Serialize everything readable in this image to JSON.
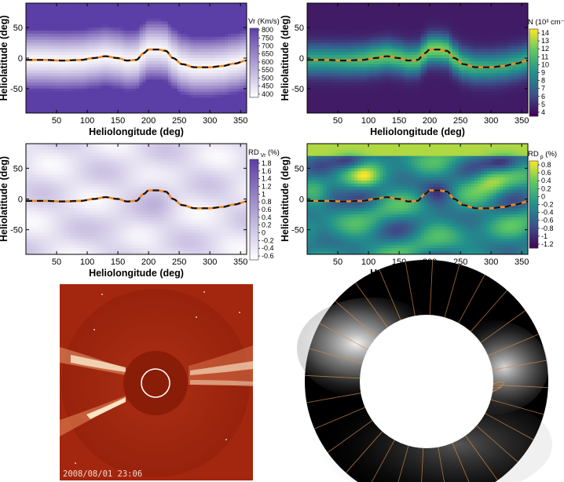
{
  "chart_data": [
    {
      "type": "heatmap",
      "quantity_label": "Vr (Km/s)",
      "xlabel": "Heliolongitude (deg)",
      "ylabel": "Heliolatitude (deg)",
      "xlim": [
        0,
        360
      ],
      "ylim": [
        -90,
        90
      ],
      "xticks": [
        "50",
        "100",
        "150",
        "200",
        "250",
        "300",
        "350"
      ],
      "yticks": [
        "50",
        "0",
        "-50"
      ],
      "colorbar_ticks": [
        "800",
        "750",
        "700",
        "650",
        "600",
        "550",
        "500",
        "450",
        "400"
      ],
      "colorbar_range": [
        380,
        810
      ],
      "colormap": [
        "#ffffff",
        "#5b3ea6"
      ],
      "current_sheet_style": "black/orange dashed"
    },
    {
      "type": "heatmap",
      "quantity_label": "N (10³ cm⁻³)",
      "xlabel": "Heliolongitude (deg)",
      "ylabel": "Heliolatitude (deg)",
      "xlim": [
        0,
        360
      ],
      "ylim": [
        -90,
        90
      ],
      "xticks": [
        "50",
        "100",
        "150",
        "200",
        "250",
        "300",
        "350"
      ],
      "yticks": [
        "50",
        "0",
        "-50"
      ],
      "colorbar_ticks": [
        "14",
        "13",
        "12",
        "11",
        "10",
        "9",
        "8",
        "7",
        "6",
        "5",
        "4"
      ],
      "colorbar_range": [
        3.5,
        14.5
      ],
      "colormap": [
        "#440154",
        "#3b528b",
        "#21908d",
        "#5dc863",
        "#fde725"
      ],
      "current_sheet_style": "black/orange dashed"
    },
    {
      "type": "heatmap",
      "quantity_label": "RD",
      "quantity_subscript": "Vr",
      "quantity_unit": "(%)",
      "xlabel": "Heliolongitude (deg)",
      "ylabel": "Heliolatitude (deg)",
      "xlim": [
        0,
        360
      ],
      "ylim": [
        -90,
        90
      ],
      "xticks": [
        "50",
        "100",
        "150",
        "200",
        "250",
        "300",
        "350"
      ],
      "yticks": [
        "50",
        "0",
        "-50"
      ],
      "colorbar_ticks": [
        "1.8",
        "1.6",
        "1.4",
        "1.2",
        "1",
        "0.8",
        "0.6",
        "0.4",
        "0.2",
        "0",
        "-0.2",
        "-0.4",
        "-0.6"
      ],
      "colorbar_range": [
        -0.7,
        1.9
      ],
      "colormap": [
        "#ffffff",
        "#5b3ea6"
      ],
      "current_sheet_style": "black/orange dashed"
    },
    {
      "type": "heatmap",
      "quantity_label": "RD",
      "quantity_subscript": "ρ",
      "quantity_unit": "(%)",
      "xlabel": "Heliolongitude (deg)",
      "ylabel": "Heliolatitude (deg)",
      "xlim": [
        0,
        360
      ],
      "ylim": [
        -90,
        90
      ],
      "xticks": [
        "50",
        "100",
        "150",
        "200",
        "250",
        "300",
        "350"
      ],
      "yticks": [
        "50",
        "0",
        "-50"
      ],
      "colorbar_ticks": [
        "0.8",
        "0.6",
        "0.4",
        "0.2",
        "0",
        "-0.2",
        "-0.4",
        "-0.6",
        "-0.8",
        "-1",
        "-1.2"
      ],
      "colorbar_range": [
        -1.3,
        0.9
      ],
      "colormap": [
        "#440154",
        "#3b528b",
        "#21908d",
        "#5dc863",
        "#fde725"
      ],
      "current_sheet_style": "black/orange dashed"
    }
  ],
  "current_sheet": {
    "lon": [
      0,
      30,
      60,
      90,
      110,
      130,
      150,
      165,
      180,
      192,
      200,
      215,
      228,
      240,
      255,
      275,
      300,
      320,
      340,
      360
    ],
    "lat": [
      -3,
      -3,
      -4,
      -3,
      0,
      3,
      0,
      -4,
      -3,
      8,
      14,
      14,
      12,
      0,
      -10,
      -15,
      -15,
      -13,
      -9,
      -4
    ]
  },
  "coronagraph": {
    "timestamp": "2008/08/01 23:06",
    "background": "#a3260e",
    "streamer_color": "#fff4d6"
  },
  "model_disk": {
    "background": "#000000",
    "field_line_color": "#d4894a"
  }
}
